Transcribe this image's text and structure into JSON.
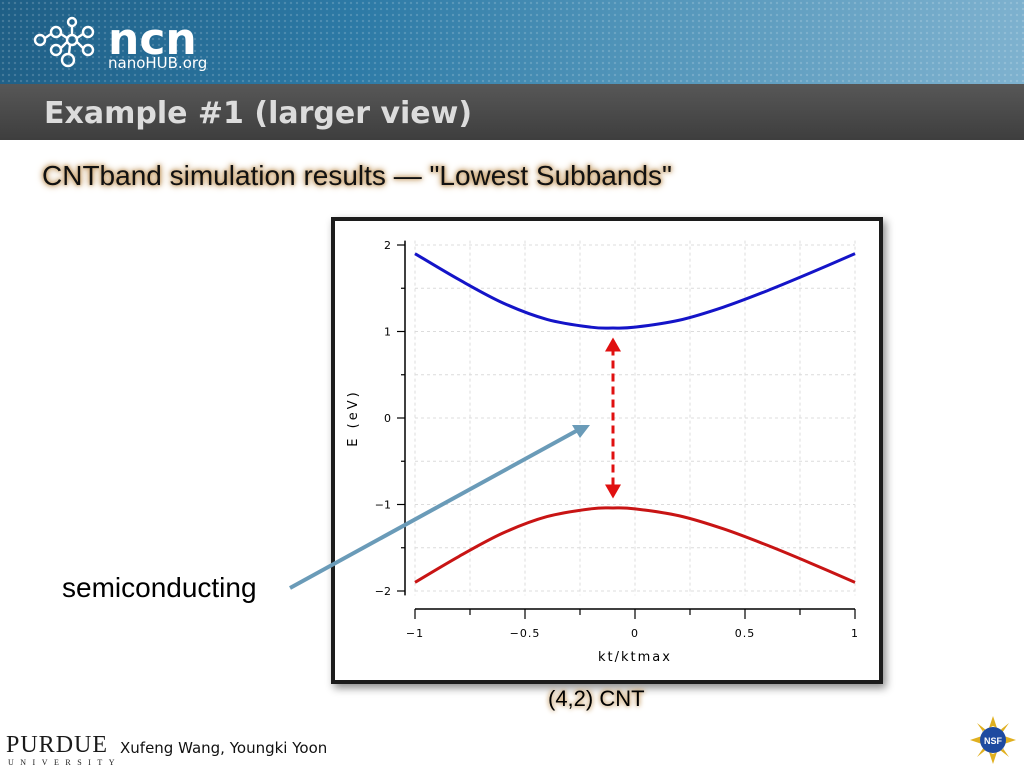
{
  "header": {
    "logo_text": "ncn",
    "logo_subtext": "nanoHUB.org",
    "title": "Example #1 (larger view)"
  },
  "slide": {
    "subtitle": "CNTband simulation results — \"Lowest Subbands\"",
    "annotation": "semiconducting",
    "caption": "(4,2) CNT"
  },
  "footer": {
    "university": "PURDUE",
    "university_sub": "UNIVERSITY",
    "authors": "Xufeng Wang, Youngki Yoon",
    "nsf_logo_text": "NSF"
  },
  "colors": {
    "conduction_band": "#1414c8",
    "valence_band": "#c81414",
    "gap_arrow": "#e01010",
    "pointer_arrow": "#6a9bb8"
  },
  "chart_data": {
    "type": "line",
    "xlabel": "kt/ktmax",
    "ylabel": "E (eV)",
    "xlim": [
      -1,
      1
    ],
    "ylim": [
      -2,
      2
    ],
    "x_ticks": [
      -1,
      -0.5,
      0,
      0.5,
      1
    ],
    "x_tick_labels": [
      "−1",
      "−0.5",
      "0",
      "0.5",
      "1"
    ],
    "y_ticks": [
      2,
      1,
      0,
      -1,
      -2
    ],
    "y_tick_labels": [
      "2",
      "1",
      "0",
      "−1",
      "−2"
    ],
    "grid": true,
    "series": [
      {
        "x": [
          -1,
          -0.8,
          -0.6,
          -0.4,
          -0.2,
          -0.1,
          0,
          0.2,
          0.4,
          0.6,
          0.8,
          1
        ],
        "y": [
          1.9,
          1.6,
          1.33,
          1.14,
          1.05,
          1.04,
          1.05,
          1.13,
          1.28,
          1.47,
          1.68,
          1.9
        ]
      },
      {
        "x": [
          -1,
          -0.8,
          -0.6,
          -0.4,
          -0.2,
          -0.1,
          0,
          0.2,
          0.4,
          0.6,
          0.8,
          1
        ],
        "y": [
          -1.9,
          -1.6,
          -1.33,
          -1.14,
          -1.05,
          -1.04,
          -1.05,
          -1.13,
          -1.28,
          -1.47,
          -1.68,
          -1.9
        ]
      }
    ],
    "annotations": [
      {
        "type": "double-arrow",
        "x": -0.1,
        "y_from": -0.93,
        "y_to": 0.93
      }
    ]
  }
}
